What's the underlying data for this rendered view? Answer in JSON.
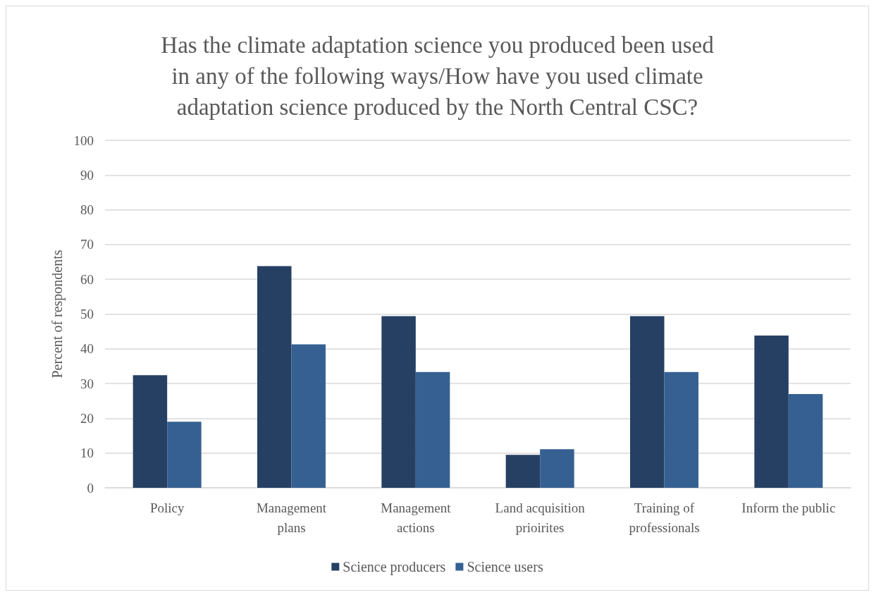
{
  "chart_data": {
    "type": "bar",
    "title": "Has the climate adaptation science you produced been used\nin any of the following ways/How have you used climate\nadaptation science produced by the North Central CSC?",
    "ylabel": "Percent of respondents",
    "categories": [
      "Policy",
      "Management\nplans",
      "Management\nactions",
      "Land acquisition\nprioirites",
      "Training of\nprofessionals",
      "Inform the public"
    ],
    "series": [
      {
        "name": "Science producers",
        "color": "#264064",
        "values": [
          32.4,
          63.8,
          49.4,
          9.5,
          49.4,
          43.8
        ]
      },
      {
        "name": "Science users",
        "color": "#366092",
        "values": [
          19.0,
          41.3,
          33.3,
          11.1,
          33.3,
          27.0
        ]
      }
    ],
    "ylim": [
      0,
      100
    ],
    "yticks": [
      0,
      10,
      20,
      30,
      40,
      50,
      60,
      70,
      80,
      90,
      100
    ],
    "grid": "y",
    "legend": "bottom"
  }
}
